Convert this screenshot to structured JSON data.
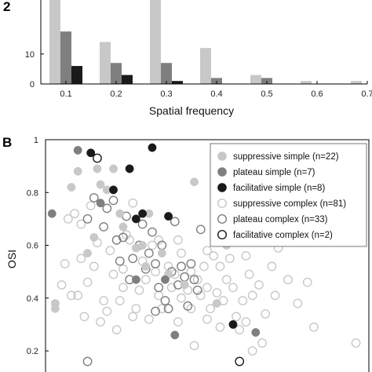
{
  "figure": {
    "panel_b_label": "B",
    "partial_top_label": "2"
  },
  "chart_data": [
    {
      "type": "bar",
      "xlabel": "Spatial frequency",
      "ylabel": "",
      "ylim": [
        0,
        28
      ],
      "xlim": [
        0.05,
        0.7
      ],
      "yticks": [
        0,
        10
      ],
      "xticks": [
        0.1,
        0.2,
        0.3,
        0.4,
        0.5,
        0.6,
        0.7
      ],
      "categories": [
        0.1,
        0.2,
        0.3,
        0.4,
        0.5,
        0.6,
        0.7
      ],
      "series": [
        {
          "color": "#c8c8c8",
          "values": [
            28,
            14,
            28,
            12,
            3,
            1,
            1
          ]
        },
        {
          "color": "#7f7f7f",
          "values": [
            17.5,
            7,
            7,
            2,
            2,
            0,
            0
          ]
        },
        {
          "color": "#1a1a1a",
          "values": [
            6,
            3,
            1,
            0,
            0,
            0,
            0
          ]
        }
      ]
    },
    {
      "type": "scatter",
      "xlabel": "",
      "ylabel": "OSI",
      "ylim": [
        0.12,
        1.0
      ],
      "yticks": [
        0.2,
        0.4,
        0.6,
        0.8,
        1
      ],
      "ytick_labels": [
        "0.2",
        "0.4",
        "0.6",
        "0.8",
        "1"
      ],
      "xlim": [
        0,
        10
      ],
      "legend_position": "top-right",
      "series": [
        {
          "name": "suppressive simple (n=22)",
          "style": "filled",
          "color": "#c8c8c8",
          "points": [
            [
              0.3,
              0.36
            ],
            [
              0.3,
              0.38
            ],
            [
              0.8,
              0.82
            ],
            [
              1.0,
              0.88
            ],
            [
              1.3,
              0.57
            ],
            [
              1.5,
              0.63
            ],
            [
              1.6,
              0.89
            ],
            [
              1.7,
              0.83
            ],
            [
              1.9,
              0.81
            ],
            [
              2.1,
              0.89
            ],
            [
              2.3,
              0.72
            ],
            [
              2.4,
              0.67
            ],
            [
              2.8,
              0.59
            ],
            [
              3.0,
              0.6
            ],
            [
              3.1,
              0.52
            ],
            [
              3.6,
              0.57
            ],
            [
              3.8,
              0.49
            ],
            [
              4.3,
              0.45
            ],
            [
              4.6,
              0.84
            ],
            [
              5.3,
              0.38
            ],
            [
              5.6,
              0.6
            ],
            [
              3.2,
              0.72
            ]
          ]
        },
        {
          "name": "plateau simple (n=7)",
          "style": "filled",
          "color": "#7f7f7f",
          "points": [
            [
              0.2,
              0.72
            ],
            [
              1.0,
              0.96
            ],
            [
              1.7,
              0.76
            ],
            [
              2.8,
              0.47
            ],
            [
              3.7,
              0.47
            ],
            [
              4.0,
              0.26
            ],
            [
              6.5,
              0.27
            ]
          ]
        },
        {
          "name": "facilitative simple (n=8)",
          "style": "filled",
          "color": "#1a1a1a",
          "points": [
            [
              1.4,
              0.95
            ],
            [
              2.6,
              0.89
            ],
            [
              3.3,
              0.97
            ],
            [
              3.0,
              0.72
            ],
            [
              2.1,
              0.81
            ],
            [
              2.8,
              0.7
            ],
            [
              3.8,
              0.71
            ],
            [
              5.8,
              0.3
            ]
          ]
        },
        {
          "name": "suppressive complex (n=81)",
          "style": "open",
          "color": "#c8c8c8",
          "points": [
            [
              0.5,
              0.45
            ],
            [
              0.6,
              0.53
            ],
            [
              0.8,
              0.41
            ],
            [
              1.0,
              0.41
            ],
            [
              1.1,
              0.55
            ],
            [
              1.2,
              0.33
            ],
            [
              1.3,
              0.46
            ],
            [
              1.5,
              0.52
            ],
            [
              1.7,
              0.31
            ],
            [
              1.8,
              0.39
            ],
            [
              2.0,
              0.58
            ],
            [
              2.1,
              0.49
            ],
            [
              2.2,
              0.28
            ],
            [
              2.3,
              0.39
            ],
            [
              2.4,
              0.51
            ],
            [
              2.6,
              0.62
            ],
            [
              2.7,
              0.33
            ],
            [
              2.9,
              0.43
            ],
            [
              3.0,
              0.54
            ],
            [
              3.2,
              0.32
            ],
            [
              3.3,
              0.6
            ],
            [
              3.4,
              0.5
            ],
            [
              3.5,
              0.41
            ],
            [
              3.6,
              0.36
            ],
            [
              3.8,
              0.52
            ],
            [
              3.9,
              0.44
            ],
            [
              4.0,
              0.49
            ],
            [
              4.1,
              0.31
            ],
            [
              4.2,
              0.57
            ],
            [
              4.4,
              0.43
            ],
            [
              4.5,
              0.36
            ],
            [
              4.6,
              0.22
            ],
            [
              4.7,
              0.47
            ],
            [
              4.8,
              0.41
            ],
            [
              4.9,
              0.52
            ],
            [
              5.0,
              0.44
            ],
            [
              5.1,
              0.36
            ],
            [
              5.2,
              0.56
            ],
            [
              5.3,
              0.42
            ],
            [
              5.4,
              0.29
            ],
            [
              5.5,
              0.39
            ],
            [
              5.6,
              0.47
            ],
            [
              5.7,
              0.55
            ],
            [
              5.8,
              0.44
            ],
            [
              5.9,
              0.33
            ],
            [
              6.0,
              0.28
            ],
            [
              6.1,
              0.39
            ],
            [
              6.2,
              0.56
            ],
            [
              6.3,
              0.49
            ],
            [
              6.4,
              0.41
            ],
            [
              6.6,
              0.45
            ],
            [
              6.8,
              0.34
            ],
            [
              7.0,
              0.52
            ],
            [
              7.1,
              0.41
            ],
            [
              7.2,
              0.59
            ],
            [
              7.5,
              0.47
            ],
            [
              7.8,
              0.38
            ],
            [
              8.1,
              0.46
            ],
            [
              8.3,
              0.29
            ],
            [
              1.1,
              0.68
            ],
            [
              1.4,
              0.75
            ],
            [
              1.6,
              0.61
            ],
            [
              2.5,
              0.64
            ],
            [
              4.1,
              0.62
            ],
            [
              5.0,
              0.58
            ],
            [
              0.9,
              0.72
            ],
            [
              0.7,
              0.7
            ],
            [
              2.7,
              0.76
            ],
            [
              3.5,
              0.62
            ],
            [
              4.5,
              0.5
            ],
            [
              5.4,
              0.52
            ],
            [
              6.2,
              0.31
            ],
            [
              6.7,
              0.23
            ],
            [
              2.4,
              0.44
            ],
            [
              3.1,
              0.47
            ],
            [
              4.2,
              0.4
            ],
            [
              1.9,
              0.35
            ],
            [
              2.8,
              0.36
            ],
            [
              5.0,
              0.32
            ],
            [
              6.4,
              0.2
            ],
            [
              9.6,
              0.23
            ]
          ]
        },
        {
          "name": "plateau complex (n=33)",
          "style": "open",
          "color": "#7f7f7f",
          "points": [
            [
              1.3,
              0.7
            ],
            [
              1.5,
              0.78
            ],
            [
              1.8,
              0.67
            ],
            [
              1.9,
              0.74
            ],
            [
              2.2,
              0.62
            ],
            [
              2.3,
              0.54
            ],
            [
              2.4,
              0.63
            ],
            [
              2.5,
              0.71
            ],
            [
              2.7,
              0.55
            ],
            [
              2.9,
              0.6
            ],
            [
              3.0,
              0.68
            ],
            [
              3.1,
              0.51
            ],
            [
              3.2,
              0.57
            ],
            [
              3.3,
              0.65
            ],
            [
              3.4,
              0.53
            ],
            [
              3.5,
              0.44
            ],
            [
              3.6,
              0.6
            ],
            [
              3.7,
              0.39
            ],
            [
              3.9,
              0.5
            ],
            [
              4.0,
              0.69
            ],
            [
              4.1,
              0.45
            ],
            [
              4.2,
              0.52
            ],
            [
              4.3,
              0.48
            ],
            [
              4.4,
              0.37
            ],
            [
              4.5,
              0.53
            ],
            [
              4.6,
              0.47
            ],
            [
              4.7,
              0.43
            ],
            [
              4.8,
              0.66
            ],
            [
              2.1,
              0.77
            ],
            [
              2.6,
              0.47
            ],
            [
              3.8,
              0.36
            ],
            [
              1.3,
              0.16
            ],
            [
              3.4,
              0.35
            ]
          ]
        },
        {
          "name": "facilitative complex (n=2)",
          "style": "open",
          "color": "#1a1a1a",
          "points": [
            [
              1.6,
              0.93
            ],
            [
              6.0,
              0.16
            ]
          ]
        }
      ]
    }
  ],
  "icons": {
    "legend_marker_filled": "filled-circle-icon",
    "legend_marker_open": "open-circle-icon"
  }
}
